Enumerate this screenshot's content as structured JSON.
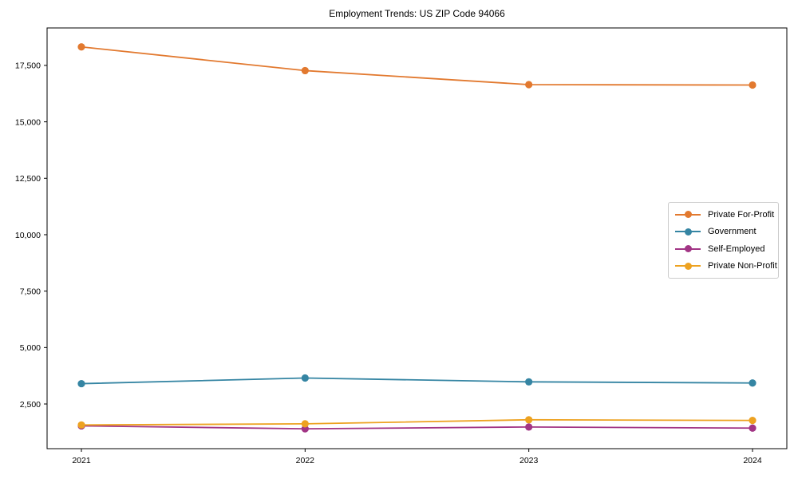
{
  "chart_data": {
    "type": "line",
    "title": "Employment Trends: US ZIP Code 94066",
    "categories": [
      "2021",
      "2022",
      "2023",
      "2024"
    ],
    "series": [
      {
        "name": "Private For-Profit",
        "color": "#e2792f",
        "values": [
          18320,
          17270,
          16650,
          16630
        ]
      },
      {
        "name": "Government",
        "color": "#3585a3",
        "values": [
          3400,
          3650,
          3480,
          3430
        ]
      },
      {
        "name": "Self-Employed",
        "color": "#a23585",
        "values": [
          1530,
          1400,
          1480,
          1430
        ]
      },
      {
        "name": "Private Non-Profit",
        "color": "#eda221",
        "values": [
          1570,
          1620,
          1800,
          1770
        ]
      }
    ],
    "xlabel": "",
    "ylabel": "",
    "ylim": [
      520,
      19160
    ],
    "yticks": [
      2500,
      5000,
      7500,
      10000,
      12500,
      15000,
      17500
    ],
    "ytick_labels": [
      "2,500",
      "5,000",
      "7,500",
      "10,000",
      "12,500",
      "15,000",
      "17,500"
    ],
    "grid": false,
    "legend_position": "center-right",
    "marker": "circle"
  },
  "colors": {
    "axis": "#000000",
    "tick_label": "#000000",
    "legend_border": "#cccccc",
    "background": "#ffffff"
  }
}
